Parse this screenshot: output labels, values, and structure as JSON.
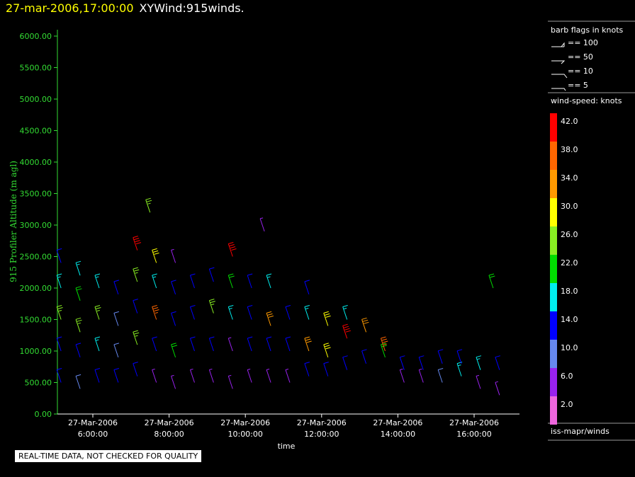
{
  "header": {
    "date_time": "27-mar-2006,17:00:00",
    "product": "XYWind:915winds."
  },
  "footer": {
    "disclaimer": "REAL-TIME DATA, NOT CHECKED FOR QUALITY"
  },
  "sidebar": {
    "barb_title": "barb flags in knots",
    "barb_entries": [
      "== 100",
      "== 50",
      "== 10",
      "== 5"
    ],
    "speed_title": "wind-speed: knots",
    "source": "iss-mapr/winds"
  },
  "colors": {
    "axis_green": "#33dd33",
    "title_yellow": "#ffff00",
    "scale": [
      "#ee66dd",
      "#9922ee",
      "#6688ee",
      "#0000ff",
      "#00eeee",
      "#00dd00",
      "#88ee22",
      "#ffff00",
      "#ff9900",
      "#ff6600",
      "#ff0000"
    ]
  },
  "chart_data": {
    "type": "scatter",
    "title": "XYWind:915winds.",
    "subtitle": "27-mar-2006,17:00:00",
    "xlabel": "time",
    "ylabel": "915 Profiler Altitude (m agl)",
    "ylim": [
      0,
      6200
    ],
    "y_ticks": [
      "0.00",
      "500.00",
      "1000.00",
      "1500.00",
      "2000.00",
      "2500.00",
      "3000.00",
      "3500.00",
      "4000.00",
      "4500.00",
      "5000.00",
      "5500.00",
      "6000.00"
    ],
    "x_ticks": [
      {
        "date": "27-Mar-2006",
        "time": "6:00:00"
      },
      {
        "date": "27-Mar-2006",
        "time": "8:00:00"
      },
      {
        "date": "27-Mar-2006",
        "time": "10:00:00"
      },
      {
        "date": "27-Mar-2006",
        "time": "12:00:00"
      },
      {
        "date": "27-Mar-2006",
        "time": "14:00:00"
      },
      {
        "date": "27-Mar-2006",
        "time": "16:00:00"
      }
    ],
    "color_scale": {
      "label": "wind-speed: knots",
      "ticks": [
        "42.0",
        "38.0",
        "34.0",
        "30.0",
        "26.0",
        "22.0",
        "18.0",
        "14.0",
        "10.0",
        "6.0",
        "2.0"
      ]
    },
    "grid": false,
    "series": [
      {
        "name": "915 winds",
        "points": [
          {
            "time": "05:10",
            "altitude": 500,
            "speed": 14
          },
          {
            "time": "05:10",
            "altitude": 1000,
            "speed": 14
          },
          {
            "time": "05:10",
            "altitude": 1500,
            "speed": 26
          },
          {
            "time": "05:10",
            "altitude": 2000,
            "speed": 18
          },
          {
            "time": "05:10",
            "altitude": 2400,
            "speed": 14
          },
          {
            "time": "05:40",
            "altitude": 400,
            "speed": 10
          },
          {
            "time": "05:40",
            "altitude": 900,
            "speed": 14
          },
          {
            "time": "05:40",
            "altitude": 1300,
            "speed": 26
          },
          {
            "time": "05:40",
            "altitude": 1800,
            "speed": 22
          },
          {
            "time": "05:40",
            "altitude": 2200,
            "speed": 18
          },
          {
            "time": "06:10",
            "altitude": 500,
            "speed": 14
          },
          {
            "time": "06:10",
            "altitude": 1000,
            "speed": 18
          },
          {
            "time": "06:10",
            "altitude": 1500,
            "speed": 26
          },
          {
            "time": "06:10",
            "altitude": 2000,
            "speed": 18
          },
          {
            "time": "06:40",
            "altitude": 500,
            "speed": 14
          },
          {
            "time": "06:40",
            "altitude": 900,
            "speed": 10
          },
          {
            "time": "06:40",
            "altitude": 1400,
            "speed": 10
          },
          {
            "time": "06:40",
            "altitude": 1900,
            "speed": 14
          },
          {
            "time": "07:10",
            "altitude": 600,
            "speed": 14
          },
          {
            "time": "07:10",
            "altitude": 1100,
            "speed": 26
          },
          {
            "time": "07:10",
            "altitude": 1600,
            "speed": 14
          },
          {
            "time": "07:10",
            "altitude": 2100,
            "speed": 26
          },
          {
            "time": "07:10",
            "altitude": 2600,
            "speed": 42
          },
          {
            "time": "07:30",
            "altitude": 3200,
            "speed": 26
          },
          {
            "time": "07:40",
            "altitude": 500,
            "speed": 6
          },
          {
            "time": "07:40",
            "altitude": 1000,
            "speed": 14
          },
          {
            "time": "07:40",
            "altitude": 1500,
            "speed": 38
          },
          {
            "time": "07:40",
            "altitude": 2000,
            "speed": 18
          },
          {
            "time": "07:40",
            "altitude": 2400,
            "speed": 30
          },
          {
            "time": "08:10",
            "altitude": 400,
            "speed": 6
          },
          {
            "time": "08:10",
            "altitude": 900,
            "speed": 22
          },
          {
            "time": "08:10",
            "altitude": 1400,
            "speed": 14
          },
          {
            "time": "08:10",
            "altitude": 1900,
            "speed": 14
          },
          {
            "time": "08:10",
            "altitude": 2400,
            "speed": 6
          },
          {
            "time": "08:40",
            "altitude": 500,
            "speed": 6
          },
          {
            "time": "08:40",
            "altitude": 1000,
            "speed": 14
          },
          {
            "time": "08:40",
            "altitude": 1500,
            "speed": 14
          },
          {
            "time": "08:40",
            "altitude": 2000,
            "speed": 14
          },
          {
            "time": "09:10",
            "altitude": 500,
            "speed": 6
          },
          {
            "time": "09:10",
            "altitude": 1000,
            "speed": 14
          },
          {
            "time": "09:10",
            "altitude": 1600,
            "speed": 26
          },
          {
            "time": "09:10",
            "altitude": 2100,
            "speed": 14
          },
          {
            "time": "09:40",
            "altitude": 400,
            "speed": 6
          },
          {
            "time": "09:40",
            "altitude": 1000,
            "speed": 6
          },
          {
            "time": "09:40",
            "altitude": 1500,
            "speed": 18
          },
          {
            "time": "09:40",
            "altitude": 2000,
            "speed": 22
          },
          {
            "time": "09:40",
            "altitude": 2500,
            "speed": 42
          },
          {
            "time": "10:10",
            "altitude": 500,
            "speed": 6
          },
          {
            "time": "10:10",
            "altitude": 1000,
            "speed": 14
          },
          {
            "time": "10:10",
            "altitude": 1500,
            "speed": 14
          },
          {
            "time": "10:10",
            "altitude": 2000,
            "speed": 14
          },
          {
            "time": "10:30",
            "altitude": 2900,
            "speed": 6
          },
          {
            "time": "10:40",
            "altitude": 500,
            "speed": 6
          },
          {
            "time": "10:40",
            "altitude": 1000,
            "speed": 14
          },
          {
            "time": "10:40",
            "altitude": 1400,
            "speed": 34
          },
          {
            "time": "10:40",
            "altitude": 2000,
            "speed": 18
          },
          {
            "time": "11:10",
            "altitude": 500,
            "speed": 6
          },
          {
            "time": "11:10",
            "altitude": 1000,
            "speed": 14
          },
          {
            "time": "11:10",
            "altitude": 1500,
            "speed": 14
          },
          {
            "time": "11:40",
            "altitude": 600,
            "speed": 14
          },
          {
            "time": "11:40",
            "altitude": 1000,
            "speed": 34
          },
          {
            "time": "11:40",
            "altitude": 1500,
            "speed": 18
          },
          {
            "time": "11:40",
            "altitude": 1900,
            "speed": 14
          },
          {
            "time": "12:10",
            "altitude": 600,
            "speed": 14
          },
          {
            "time": "12:10",
            "altitude": 900,
            "speed": 30
          },
          {
            "time": "12:10",
            "altitude": 1400,
            "speed": 30
          },
          {
            "time": "12:40",
            "altitude": 700,
            "speed": 14
          },
          {
            "time": "12:40",
            "altitude": 1200,
            "speed": 42
          },
          {
            "time": "12:40",
            "altitude": 1500,
            "speed": 18
          },
          {
            "time": "13:10",
            "altitude": 800,
            "speed": 14
          },
          {
            "time": "13:10",
            "altitude": 1300,
            "speed": 34
          },
          {
            "time": "13:40",
            "altitude": 900,
            "speed": 22
          },
          {
            "time": "13:40",
            "altitude": 1000,
            "speed": 38
          },
          {
            "time": "14:10",
            "altitude": 500,
            "speed": 6
          },
          {
            "time": "14:10",
            "altitude": 700,
            "speed": 14
          },
          {
            "time": "14:40",
            "altitude": 500,
            "speed": 6
          },
          {
            "time": "14:40",
            "altitude": 700,
            "speed": 14
          },
          {
            "time": "15:10",
            "altitude": 500,
            "speed": 10
          },
          {
            "time": "15:10",
            "altitude": 800,
            "speed": 14
          },
          {
            "time": "15:40",
            "altitude": 600,
            "speed": 18
          },
          {
            "time": "15:40",
            "altitude": 800,
            "speed": 14
          },
          {
            "time": "16:10",
            "altitude": 400,
            "speed": 6
          },
          {
            "time": "16:10",
            "altitude": 700,
            "speed": 18
          },
          {
            "time": "16:30",
            "altitude": 2000,
            "speed": 22
          },
          {
            "time": "16:40",
            "altitude": 300,
            "speed": 6
          },
          {
            "time": "16:40",
            "altitude": 700,
            "speed": 14
          }
        ]
      }
    ]
  }
}
